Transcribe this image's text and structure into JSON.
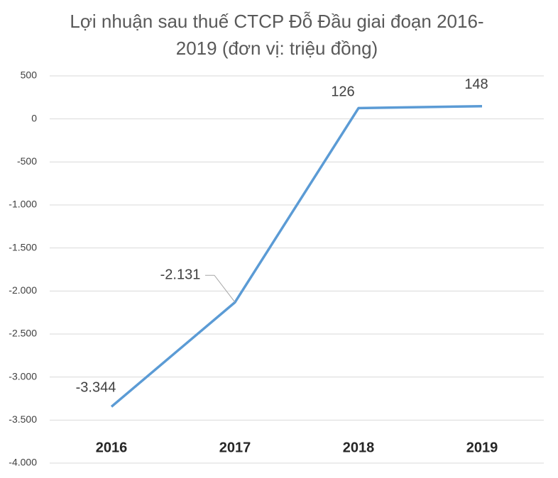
{
  "chart_data": {
    "type": "line",
    "title": [
      "Lợi nhuận sau thuế CTCP Đỗ Đầu giai đoạn 2016-",
      "2019 (đơn vị: triệu đồng)"
    ],
    "categories": [
      "2016",
      "2017",
      "2018",
      "2019"
    ],
    "values": [
      -3344,
      -2131,
      126,
      148
    ],
    "value_labels": [
      "-3.344",
      "-2.131",
      "126",
      "148"
    ],
    "color": "#5b9bd5",
    "ylim": [
      -4000,
      500
    ],
    "yticks": [
      500,
      0,
      -500,
      {
        "value": -1000,
        "label": "-1.000"
      },
      {
        "value": -1500,
        "label": "-1.500"
      },
      {
        "value": -2000,
        "label": "-2.000"
      },
      {
        "value": -2500,
        "label": "-2.500"
      },
      {
        "value": -3000,
        "label": "-3.000"
      },
      {
        "value": -3500,
        "label": "-3.500"
      },
      {
        "value": -4000,
        "label": "-4.000"
      }
    ],
    "grid": true
  }
}
